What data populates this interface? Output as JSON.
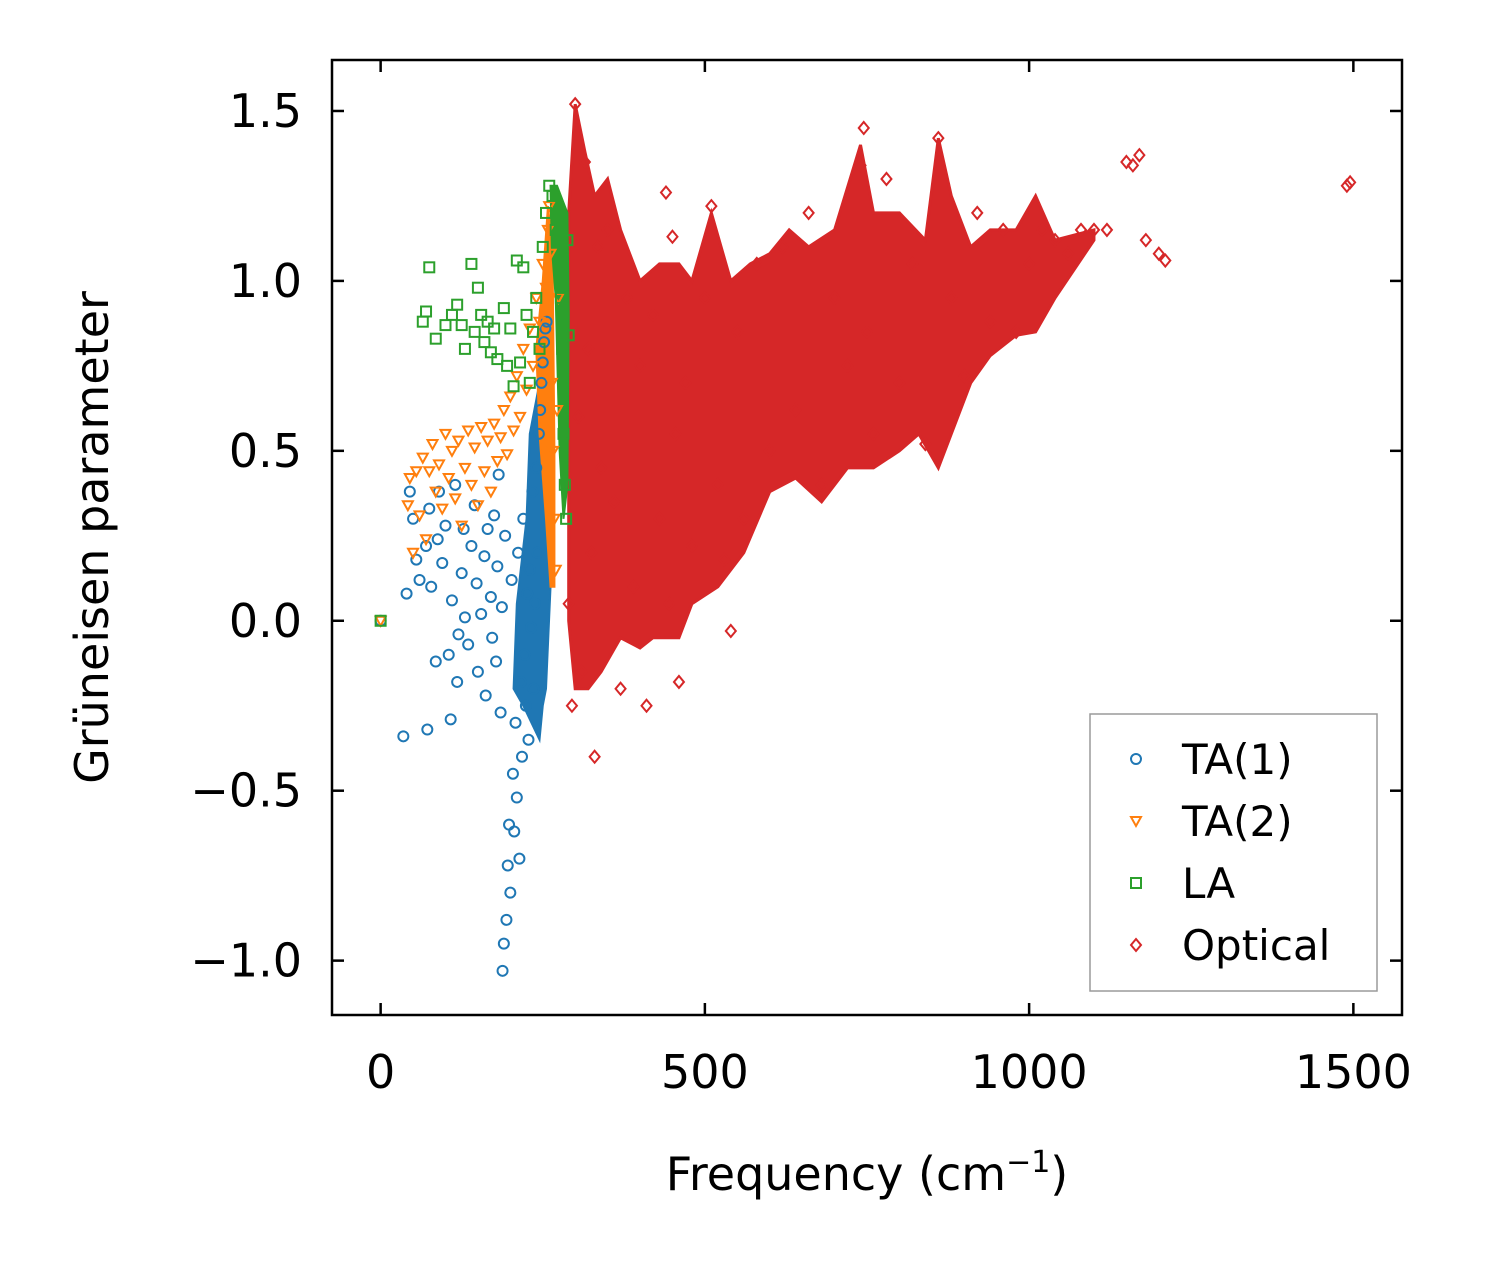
{
  "chart_data": {
    "type": "scatter",
    "title": "",
    "xlabel": "Frequency (cm",
    "xlabel_sup": "−1",
    "xlabel_tail": ")",
    "ylabel": "Grüneisen parameter",
    "xlim": [
      -75,
      1575
    ],
    "ylim": [
      -1.16,
      1.65
    ],
    "xticks": [
      0,
      500,
      1000,
      1500
    ],
    "xtick_labels": [
      "0",
      "500",
      "1000",
      "1500"
    ],
    "yticks": [
      1.5,
      1.0,
      0.5,
      0.0,
      -0.5,
      -1.0
    ],
    "ytick_labels": [
      "1.5",
      "1.0",
      "0.5",
      "0.0",
      "−0.5",
      "−1.0"
    ],
    "grid": false,
    "legend_position": "bottom-right",
    "legend": [
      "TA(1)",
      "TA(2)",
      "LA",
      "Optical"
    ],
    "colors": {
      "TA(1)": "#1f77b4",
      "TA(2)": "#ff7f0e",
      "LA": "#2ca02c",
      "Optical": "#d62728"
    },
    "series": [
      {
        "name": "TA(1)",
        "marker": "circle",
        "points": [
          [
            0,
            0
          ],
          [
            35,
            -0.34
          ],
          [
            40,
            0.08
          ],
          [
            45,
            0.38
          ],
          [
            50,
            0.3
          ],
          [
            55,
            0.18
          ],
          [
            60,
            0.12
          ],
          [
            70,
            0.22
          ],
          [
            72,
            -0.32
          ],
          [
            75,
            0.33
          ],
          [
            78,
            0.1
          ],
          [
            85,
            -0.12
          ],
          [
            88,
            0.24
          ],
          [
            90,
            0.38
          ],
          [
            95,
            0.17
          ],
          [
            100,
            0.28
          ],
          [
            105,
            -0.1
          ],
          [
            108,
            -0.29
          ],
          [
            110,
            0.06
          ],
          [
            115,
            0.4
          ],
          [
            118,
            -0.18
          ],
          [
            120,
            -0.04
          ],
          [
            125,
            0.14
          ],
          [
            128,
            0.27
          ],
          [
            130,
            0.01
          ],
          [
            135,
            -0.07
          ],
          [
            140,
            0.22
          ],
          [
            145,
            0.34
          ],
          [
            148,
            0.11
          ],
          [
            150,
            -0.15
          ],
          [
            155,
            0.02
          ],
          [
            160,
            0.19
          ],
          [
            162,
            -0.22
          ],
          [
            165,
            0.27
          ],
          [
            170,
            0.07
          ],
          [
            172,
            -0.05
          ],
          [
            175,
            0.31
          ],
          [
            178,
            -0.12
          ],
          [
            180,
            0.16
          ],
          [
            182,
            0.43
          ],
          [
            185,
            -0.27
          ],
          [
            187,
            0.04
          ],
          [
            188,
            -1.03
          ],
          [
            190,
            -0.95
          ],
          [
            192,
            0.25
          ],
          [
            194,
            -0.88
          ],
          [
            196,
            -0.72
          ],
          [
            198,
            -0.6
          ],
          [
            200,
            -0.8
          ],
          [
            202,
            0.12
          ],
          [
            204,
            -0.45
          ],
          [
            206,
            -0.62
          ],
          [
            208,
            -0.3
          ],
          [
            210,
            -0.52
          ],
          [
            212,
            0.2
          ],
          [
            214,
            -0.7
          ],
          [
            216,
            -0.18
          ],
          [
            218,
            -0.4
          ],
          [
            220,
            0.3
          ],
          [
            222,
            -0.1
          ],
          [
            224,
            -0.25
          ],
          [
            226,
            0.08
          ],
          [
            228,
            -0.35
          ],
          [
            230,
            0.15
          ],
          [
            232,
            -0.02
          ],
          [
            234,
            0.38
          ],
          [
            236,
            -0.2
          ],
          [
            238,
            0.05
          ],
          [
            240,
            0.45
          ],
          [
            242,
            0.2
          ],
          [
            244,
            0.55
          ],
          [
            246,
            0.62
          ],
          [
            248,
            0.7
          ],
          [
            250,
            0.76
          ],
          [
            252,
            0.82
          ],
          [
            254,
            0.86
          ],
          [
            256,
            0.88
          ]
        ]
      },
      {
        "name": "TA(2)",
        "marker": "triangle-down",
        "points": [
          [
            0,
            0
          ],
          [
            42,
            0.34
          ],
          [
            45,
            0.42
          ],
          [
            50,
            0.2
          ],
          [
            55,
            0.44
          ],
          [
            60,
            0.31
          ],
          [
            65,
            0.48
          ],
          [
            70,
            0.24
          ],
          [
            75,
            0.44
          ],
          [
            80,
            0.52
          ],
          [
            85,
            0.38
          ],
          [
            90,
            0.46
          ],
          [
            95,
            0.33
          ],
          [
            100,
            0.55
          ],
          [
            105,
            0.42
          ],
          [
            110,
            0.5
          ],
          [
            115,
            0.36
          ],
          [
            120,
            0.53
          ],
          [
            125,
            0.28
          ],
          [
            130,
            0.45
          ],
          [
            135,
            0.56
          ],
          [
            140,
            0.4
          ],
          [
            145,
            0.51
          ],
          [
            150,
            0.34
          ],
          [
            155,
            0.57
          ],
          [
            160,
            0.44
          ],
          [
            165,
            0.53
          ],
          [
            170,
            0.38
          ],
          [
            175,
            0.58
          ],
          [
            180,
            0.47
          ],
          [
            185,
            0.54
          ],
          [
            190,
            0.62
          ],
          [
            195,
            0.49
          ],
          [
            200,
            0.66
          ],
          [
            205,
            0.56
          ],
          [
            210,
            0.72
          ],
          [
            215,
            0.6
          ],
          [
            220,
            0.8
          ],
          [
            225,
            0.68
          ],
          [
            230,
            0.86
          ],
          [
            235,
            0.75
          ],
          [
            240,
            0.95
          ],
          [
            245,
            0.88
          ],
          [
            250,
            1.05
          ],
          [
            255,
            0.98
          ],
          [
            258,
            1.15
          ],
          [
            260,
            1.22
          ],
          [
            262,
            1.08
          ],
          [
            264,
            0.7
          ],
          [
            266,
            0.5
          ],
          [
            268,
            0.3
          ],
          [
            270,
            0.15
          ],
          [
            272,
            0.62
          ],
          [
            274,
            0.95
          ]
        ]
      },
      {
        "name": "LA",
        "marker": "square",
        "points": [
          [
            0,
            0
          ],
          [
            65,
            0.88
          ],
          [
            70,
            0.91
          ],
          [
            75,
            1.04
          ],
          [
            85,
            0.83
          ],
          [
            100,
            0.87
          ],
          [
            110,
            0.9
          ],
          [
            118,
            0.93
          ],
          [
            125,
            0.87
          ],
          [
            130,
            0.8
          ],
          [
            140,
            1.05
          ],
          [
            145,
            0.85
          ],
          [
            150,
            0.98
          ],
          [
            155,
            0.9
          ],
          [
            160,
            0.82
          ],
          [
            165,
            0.88
          ],
          [
            170,
            0.79
          ],
          [
            175,
            0.86
          ],
          [
            180,
            0.77
          ],
          [
            190,
            0.92
          ],
          [
            195,
            0.75
          ],
          [
            200,
            0.86
          ],
          [
            205,
            0.69
          ],
          [
            210,
            1.06
          ],
          [
            215,
            0.76
          ],
          [
            220,
            1.04
          ],
          [
            225,
            0.9
          ],
          [
            230,
            0.7
          ],
          [
            235,
            0.85
          ],
          [
            240,
            0.95
          ],
          [
            245,
            0.8
          ],
          [
            250,
            1.1
          ],
          [
            255,
            1.2
          ],
          [
            260,
            1.28
          ],
          [
            265,
            1.25
          ],
          [
            270,
            1.15
          ],
          [
            275,
            1.05
          ],
          [
            278,
            0.95
          ],
          [
            280,
            0.8
          ],
          [
            282,
            0.55
          ],
          [
            284,
            0.4
          ],
          [
            286,
            0.3
          ],
          [
            288,
            1.12
          ],
          [
            290,
            0.84
          ]
        ]
      },
      {
        "name": "Optical",
        "marker": "diamond",
        "points": [
          [
            290,
            0.05
          ],
          [
            295,
            -0.25
          ],
          [
            300,
            1.52
          ],
          [
            305,
            0.6
          ],
          [
            310,
            -0.15
          ],
          [
            315,
            1.35
          ],
          [
            320,
            0.8
          ],
          [
            325,
            0.2
          ],
          [
            330,
            -0.4
          ],
          [
            335,
            1.1
          ],
          [
            340,
            0.45
          ],
          [
            350,
            1.15
          ],
          [
            360,
            0.35
          ],
          [
            370,
            -0.2
          ],
          [
            380,
            0.95
          ],
          [
            390,
            0.1
          ],
          [
            400,
            0.75
          ],
          [
            410,
            -0.25
          ],
          [
            420,
            0.9
          ],
          [
            430,
            0.3
          ],
          [
            440,
            1.26
          ],
          [
            445,
            0.05
          ],
          [
            450,
            1.13
          ],
          [
            455,
            0.55
          ],
          [
            460,
            -0.18
          ],
          [
            470,
            0.7
          ],
          [
            480,
            0.22
          ],
          [
            500,
            0.95
          ],
          [
            510,
            1.22
          ],
          [
            520,
            0.4
          ],
          [
            530,
            0.18
          ],
          [
            540,
            -0.03
          ],
          [
            550,
            0.85
          ],
          [
            560,
            0.3
          ],
          [
            580,
            1.05
          ],
          [
            600,
            0.5
          ],
          [
            620,
            1.1
          ],
          [
            640,
            0.62
          ],
          [
            660,
            1.2
          ],
          [
            680,
            0.4
          ],
          [
            700,
            0.95
          ],
          [
            720,
            0.75
          ],
          [
            740,
            1.34
          ],
          [
            745,
            1.45
          ],
          [
            750,
            0.85
          ],
          [
            760,
            0.55
          ],
          [
            780,
            1.3
          ],
          [
            800,
            0.7
          ],
          [
            820,
            1.05
          ],
          [
            840,
            0.52
          ],
          [
            860,
            1.42
          ],
          [
            880,
            0.95
          ],
          [
            900,
            0.72
          ],
          [
            920,
            1.2
          ],
          [
            940,
            0.88
          ],
          [
            960,
            1.15
          ],
          [
            980,
            0.85
          ],
          [
            1000,
            1.05
          ],
          [
            1020,
            1.15
          ],
          [
            1040,
            1.12
          ],
          [
            1060,
            1.08
          ],
          [
            1080,
            1.15
          ],
          [
            1100,
            1.15
          ],
          [
            1120,
            1.15
          ],
          [
            1150,
            1.35
          ],
          [
            1160,
            1.34
          ],
          [
            1170,
            1.37
          ],
          [
            1180,
            1.12
          ],
          [
            1200,
            1.08
          ],
          [
            1210,
            1.06
          ],
          [
            1490,
            1.28
          ],
          [
            1495,
            1.29
          ]
        ]
      }
    ]
  }
}
